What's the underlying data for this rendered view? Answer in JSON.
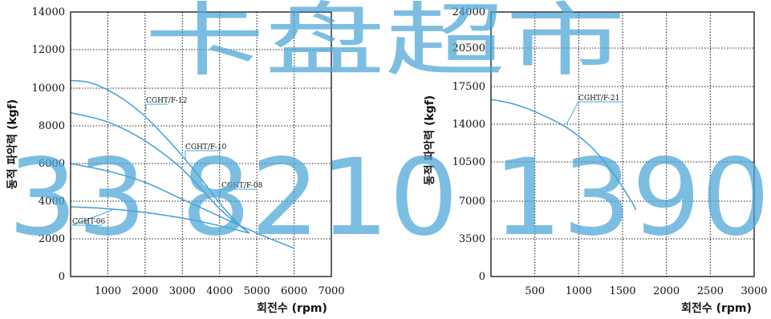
{
  "chart_data": [
    {
      "type": "line",
      "title": "",
      "xlabel": "회전수 (rpm)",
      "ylabel": "동적 파악력 (kgf)",
      "xlim": [
        0,
        7000
      ],
      "ylim": [
        0,
        14000
      ],
      "xticks": [
        1000,
        2000,
        3000,
        4000,
        5000,
        6000,
        7000
      ],
      "yticks": [
        0,
        2000,
        4000,
        6000,
        8000,
        10000,
        12000,
        14000
      ],
      "grid": true,
      "legend": "inline labels",
      "series": [
        {
          "name": "CGHT/F-12",
          "x": [
            0,
            500,
            1000,
            1500,
            2000,
            2500,
            3000,
            3500,
            4000,
            4500,
            4800
          ],
          "y": [
            10400,
            10300,
            9900,
            9300,
            8500,
            7500,
            6400,
            5200,
            3900,
            2800,
            2300
          ]
        },
        {
          "name": "CGHT/F-10",
          "x": [
            0,
            1000,
            2000,
            3000,
            4000,
            4800
          ],
          "y": [
            8700,
            8200,
            7200,
            5700,
            3600,
            2300
          ]
        },
        {
          "name": "CGHT/F-08",
          "x": [
            0,
            1000,
            2000,
            3000,
            4000,
            5000,
            6000
          ],
          "y": [
            6000,
            5600,
            5000,
            4100,
            3200,
            2300,
            1500
          ]
        },
        {
          "name": "CGHT-06",
          "x": [
            0,
            1000,
            2000,
            3000,
            4000,
            4800
          ],
          "y": [
            3700,
            3600,
            3400,
            3100,
            2700,
            2300
          ]
        }
      ]
    },
    {
      "type": "line",
      "title": "",
      "xlabel": "회전수 (rpm)",
      "ylabel": "동적 파악력 (kgf)",
      "xlim": [
        0,
        3000
      ],
      "ylim": [
        0,
        24500
      ],
      "xticks": [
        500,
        1000,
        1500,
        2000,
        2500,
        3000
      ],
      "yticks": [
        0,
        3500,
        7000,
        10500,
        14000,
        17500,
        20500,
        24000
      ],
      "grid": true,
      "legend": "inline labels",
      "series": [
        {
          "name": "CGHT/F-21",
          "x": [
            0,
            200,
            400,
            600,
            800,
            1000,
            1200,
            1400,
            1600,
            1650
          ],
          "y": [
            16300,
            16000,
            15500,
            14800,
            14000,
            12900,
            11400,
            9400,
            7000,
            6200
          ]
        }
      ]
    }
  ],
  "watermark": {
    "line1": "卡盘超市",
    "line2": "33 8210 1390"
  }
}
